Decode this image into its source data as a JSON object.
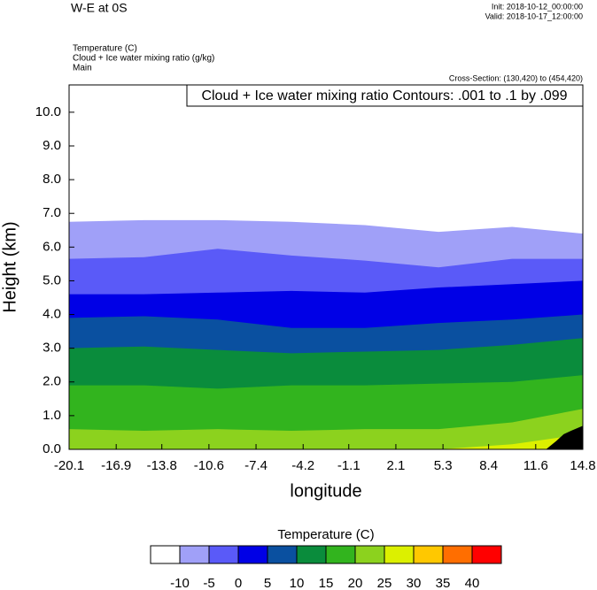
{
  "chart_data": {
    "type": "contour",
    "title": "W-E at 0S",
    "init": "Init: 2018-10-12_00:00:00",
    "valid": "Valid: 2018-10-17_12:00:00",
    "field_labels": [
      "Temperature   (C)",
      "Cloud + Ice water mixing ratio   (g/kg)",
      "Main"
    ],
    "cross_section": "Cross-Section: (130,420) to (454,420)",
    "contour_info": "Cloud + Ice water mixing ratio Contours: .001 to .1 by .099",
    "xlabel": "longitude",
    "ylabel": "Height (km)",
    "xlim": [
      -20.1,
      14.8
    ],
    "ylim": [
      0,
      10.81
    ],
    "xticks": [
      -20.1,
      -16.9,
      -13.8,
      -10.6,
      -7.4,
      -4.2,
      -1.1,
      2.1,
      5.3,
      8.4,
      11.6,
      14.8
    ],
    "yticks": [
      {
        "value": 0,
        "label": "0.0"
      },
      {
        "value": 1,
        "label": "1.0"
      },
      {
        "value": 2,
        "label": "2.0"
      },
      {
        "value": 3,
        "label": "3.0"
      },
      {
        "value": 4,
        "label": "4.0"
      },
      {
        "value": 5,
        "label": "5.0"
      },
      {
        "value": 6,
        "label": "6.0"
      },
      {
        "value": 7,
        "label": "7.0"
      },
      {
        "value": 8,
        "label": "8.0"
      },
      {
        "value": 9,
        "label": "9.0"
      },
      {
        "value": 10,
        "label": "10.0"
      }
    ],
    "x": [
      -20.1,
      -15,
      -10,
      -5,
      0,
      5,
      10,
      14.8
    ],
    "series": [
      {
        "values": [
          6.75,
          6.8,
          6.8,
          6.75,
          6.65,
          6.45,
          6.6,
          6.4
        ]
      },
      {
        "values": [
          5.65,
          5.7,
          5.95,
          5.75,
          5.6,
          5.4,
          5.65,
          5.65
        ]
      },
      {
        "values": [
          4.6,
          4.6,
          4.65,
          4.7,
          4.65,
          4.8,
          4.9,
          5.0
        ]
      },
      {
        "values": [
          3.9,
          3.95,
          3.85,
          3.6,
          3.6,
          3.75,
          3.85,
          4.0
        ]
      },
      {
        "values": [
          3.0,
          3.05,
          2.95,
          2.85,
          2.9,
          2.95,
          3.1,
          3.3
        ]
      },
      {
        "values": [
          1.9,
          1.9,
          1.8,
          1.9,
          1.9,
          1.95,
          2.0,
          2.2
        ]
      },
      {
        "values": [
          0.6,
          0.55,
          0.6,
          0.55,
          0.6,
          0.6,
          0.8,
          1.2
        ]
      },
      {
        "values": [
          0,
          0,
          0,
          0,
          0,
          0,
          0.15,
          0.45
        ]
      }
    ],
    "terrain": {
      "x": [
        12.3,
        13,
        13.5,
        14,
        14.8
      ],
      "values": [
        0,
        0.25,
        0.45,
        0.55,
        0.7
      ]
    },
    "colorbar": {
      "title": "Temperature  (C)",
      "levels": [
        -10,
        -5,
        0,
        5,
        10,
        15,
        20,
        25,
        30,
        35,
        40
      ],
      "colors": [
        "#ffffff",
        "#a0a0f8",
        "#5a5af8",
        "#0000e6",
        "#0a50a0",
        "#0a8c3c",
        "#32b41e",
        "#8cd21e",
        "#dcf000",
        "#ffc800",
        "#ff6e00",
        "#ff0000"
      ]
    }
  }
}
